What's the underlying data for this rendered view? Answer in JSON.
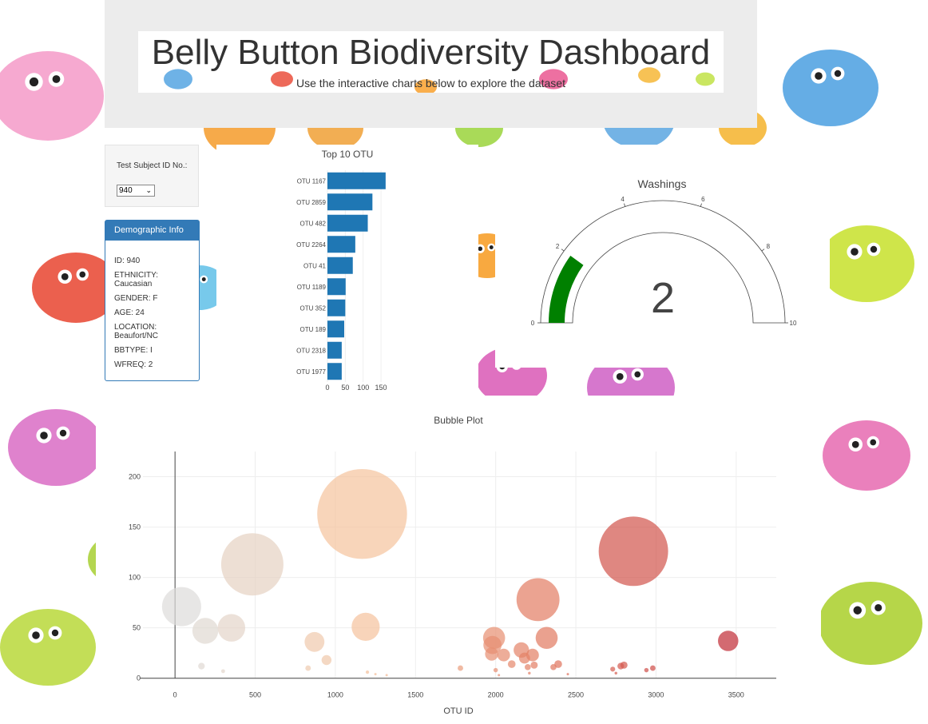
{
  "header": {
    "title": "Belly Button Biodiversity Dashboard",
    "subtitle": "Use the interactive charts below to explore the dataset"
  },
  "selector": {
    "label": "Test Subject ID No.:",
    "value": "940"
  },
  "demographics": {
    "heading": "Demographic Info",
    "rows": [
      "ID: 940",
      "ETHNICITY: Caucasian",
      "GENDER: F",
      "AGE: 24",
      "LOCATION: Beaufort/NC",
      "BBTYPE: I",
      "WFREQ: 2"
    ]
  },
  "colors": {
    "bar": "#1f77b4",
    "gauge_fill": "#008000",
    "panel_accent": "#337ab7",
    "jumbotron": "#ececec"
  },
  "chart_data": [
    {
      "type": "bar",
      "orientation": "horizontal",
      "title": "Top 10 OTU",
      "categories": [
        "OTU 1167",
        "OTU 2859",
        "OTU 482",
        "OTU 2264",
        "OTU 41",
        "OTU 1189",
        "OTU 352",
        "OTU 189",
        "OTU 2318",
        "OTU 1977"
      ],
      "values": [
        163,
        126,
        113,
        78,
        71,
        51,
        50,
        47,
        40,
        40
      ],
      "xticks": [
        0,
        50,
        100,
        150
      ],
      "xlim": [
        0,
        170
      ]
    },
    {
      "type": "gauge",
      "title": "Washings",
      "value": 2,
      "value_label": "2",
      "range": [
        0,
        10
      ],
      "ticks": [
        0,
        2,
        4,
        6,
        8,
        10
      ]
    },
    {
      "type": "scatter",
      "title": "Bubble Plot",
      "xlabel": "OTU ID",
      "ylabel": "",
      "xlim": [
        -200,
        3750
      ],
      "ylim": [
        -5,
        225
      ],
      "xticks": [
        0,
        500,
        1000,
        1500,
        2000,
        2500,
        3000,
        3500
      ],
      "yticks": [
        0,
        50,
        100,
        150,
        200
      ],
      "grid": true,
      "points": [
        {
          "x": 41,
          "y": 71
        },
        {
          "x": 189,
          "y": 47
        },
        {
          "x": 352,
          "y": 50
        },
        {
          "x": 482,
          "y": 113
        },
        {
          "x": 1167,
          "y": 163
        },
        {
          "x": 1189,
          "y": 51
        },
        {
          "x": 870,
          "y": 36
        },
        {
          "x": 945,
          "y": 18
        },
        {
          "x": 165,
          "y": 12
        },
        {
          "x": 300,
          "y": 7
        },
        {
          "x": 830,
          "y": 10
        },
        {
          "x": 1200,
          "y": 6
        },
        {
          "x": 1250,
          "y": 4
        },
        {
          "x": 1320,
          "y": 3
        },
        {
          "x": 1780,
          "y": 10
        },
        {
          "x": 1990,
          "y": 40
        },
        {
          "x": 1980,
          "y": 33
        },
        {
          "x": 1975,
          "y": 24
        },
        {
          "x": 2050,
          "y": 23
        },
        {
          "x": 2100,
          "y": 14
        },
        {
          "x": 2000,
          "y": 8
        },
        {
          "x": 2020,
          "y": 3
        },
        {
          "x": 2160,
          "y": 28
        },
        {
          "x": 2180,
          "y": 20
        },
        {
          "x": 2230,
          "y": 23
        },
        {
          "x": 2200,
          "y": 11
        },
        {
          "x": 2210,
          "y": 5
        },
        {
          "x": 2264,
          "y": 78
        },
        {
          "x": 2318,
          "y": 40
        },
        {
          "x": 2240,
          "y": 13
        },
        {
          "x": 2360,
          "y": 11
        },
        {
          "x": 2390,
          "y": 14
        },
        {
          "x": 2450,
          "y": 4
        },
        {
          "x": 2730,
          "y": 9
        },
        {
          "x": 2780,
          "y": 12
        },
        {
          "x": 2800,
          "y": 13
        },
        {
          "x": 2750,
          "y": 5
        },
        {
          "x": 2859,
          "y": 126
        },
        {
          "x": 2940,
          "y": 8
        },
        {
          "x": 2980,
          "y": 10
        },
        {
          "x": 3450,
          "y": 37
        }
      ]
    }
  ]
}
